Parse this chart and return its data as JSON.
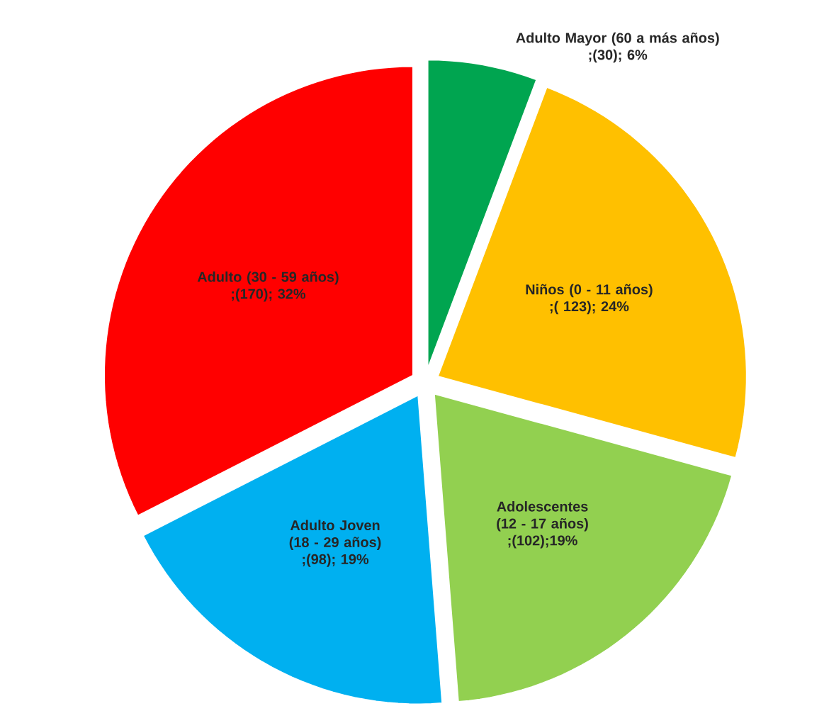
{
  "chart_data": {
    "type": "pie",
    "categories": [
      "Adulto Mayor (60 a más años)",
      "Niños (0 - 11 años)",
      "Adolescentes  (12 - 17 años)",
      "Adulto Joven (18 - 29 años)",
      "Adulto (30 - 59 años)"
    ],
    "values": [
      30,
      123,
      102,
      98,
      170
    ],
    "value_labels": [
      ";(30); 6%",
      ";( 123); 24%",
      ";(102);19%",
      ";(98); 19%",
      ";(170); 32%"
    ],
    "colors": [
      "#00a550",
      "#ffc000",
      "#92d050",
      "#00b0f0",
      "#ff0000"
    ]
  }
}
